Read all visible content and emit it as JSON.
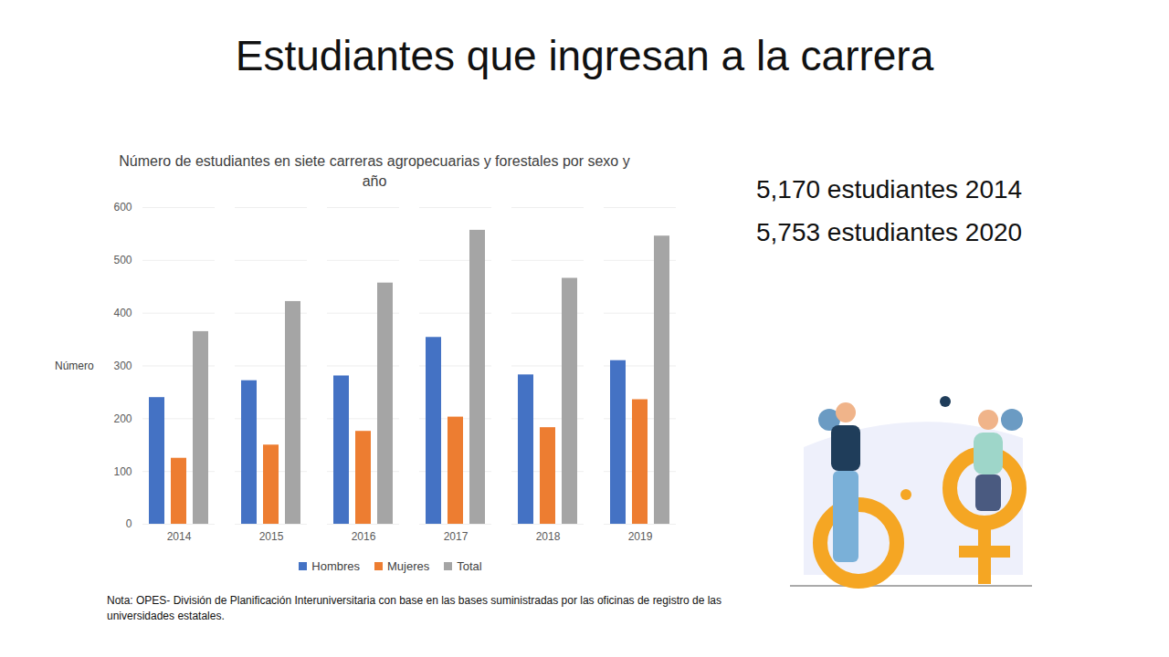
{
  "title": "Estudiantes que ingresan a la carrera",
  "annotations": [
    "5,170 estudiantes 2014",
    "5,753 estudiantes 2020"
  ],
  "note": "Nota: OPES- División de Planificación Interuniversitaria con base en las bases suministradas por las oficinas de registro de las universidades estatales.",
  "chart_data": {
    "type": "bar",
    "title": "Número de estudiantes en siete carreras agropecuarias y forestales por sexo y año",
    "y_label": "Número",
    "categories": [
      "2014",
      "2015",
      "2016",
      "2017",
      "2018",
      "2019"
    ],
    "series": [
      {
        "name": "Hombres",
        "color": "#4472c4",
        "values": [
          240,
          272,
          281,
          354,
          283,
          310
        ]
      },
      {
        "name": "Mujeres",
        "color": "#ed7d31",
        "values": [
          125,
          150,
          176,
          203,
          183,
          236
        ]
      },
      {
        "name": "Total",
        "color": "#a5a5a5",
        "values": [
          365,
          422,
          457,
          557,
          466,
          546
        ]
      }
    ],
    "ylim": [
      0,
      600
    ],
    "yticks": [
      0,
      100,
      200,
      300,
      400,
      500,
      600
    ],
    "grid": true,
    "legend": "bottom"
  }
}
